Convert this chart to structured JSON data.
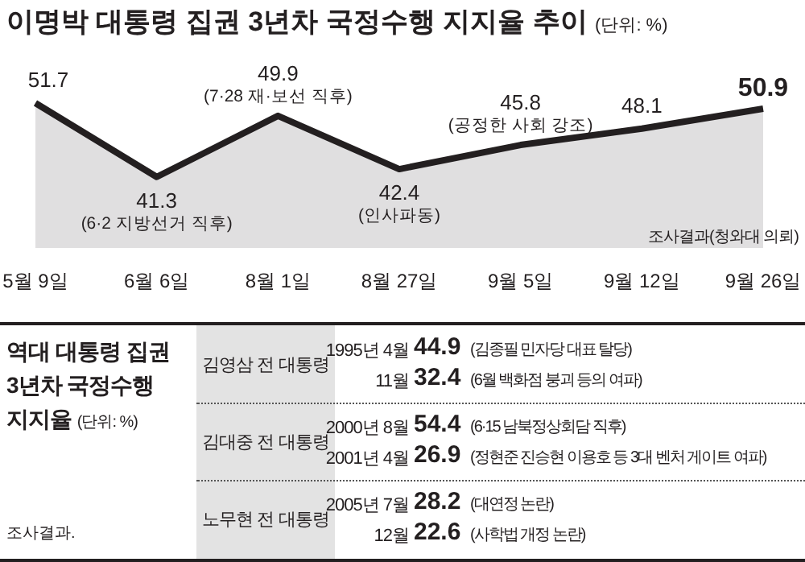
{
  "chart_data": [
    {
      "type": "area",
      "title": "이명박 대통령 집권 3년차 국정수행 지지율 추이",
      "subtitle": "(단위: %)",
      "categories": [
        "5월 9일",
        "6월 6일",
        "8월 1일",
        "8월 27일",
        "9월 5일",
        "9월 12일",
        "9월 26일"
      ],
      "series": [
        {
          "type": "area",
          "color": "#231f20",
          "values": [
            51.7,
            41.3,
            49.9,
            42.4,
            45.8,
            48.1,
            50.9
          ]
        }
      ],
      "data_labels": true,
      "marker": "none",
      "annotations": [
        {
          "text": "(6·2 지방선거 직후)",
          "x": "6월 6일",
          "y": 41.3
        },
        {
          "text": "(7·28 재·보선 직후)",
          "x": "8월 1일",
          "y": 49.9
        },
        {
          "text": "(인사파동)",
          "x": "8월 27일",
          "y": 42.4
        },
        {
          "text": "(공정한 사회 강조)",
          "x": "9월 5일",
          "y": 45.8
        },
        "조사결과(청와대 의뢰)"
      ]
    },
    {
      "type": "other",
      "title": "역대 대통령 집권 3년차 국정수행 지지율",
      "subtitle": "(단위: %)",
      "categories": [
        "김영삼 전 대통령",
        "김대중 전 대통령",
        "노무현 전 대통령"
      ],
      "annotations": [
        "1995년 4월",
        "44.9",
        "(김종필 민자당 대표 탈당)",
        "11월",
        "32.4",
        "(6월 백화점 붕괴 등의 여파)",
        "2000년 8월",
        "54.4",
        "(6·15 남북정상회담 직후)",
        "2001년 4월",
        "26.9",
        "(정현준 진승현 이용호 등 3대 벤처 게이트 여파)",
        "2005년 7월",
        "28.2",
        "(대연정 논란)",
        "12월",
        "22.6",
        "(사학법 개정 논란)",
        "조사결과."
      ]
    }
  ]
}
